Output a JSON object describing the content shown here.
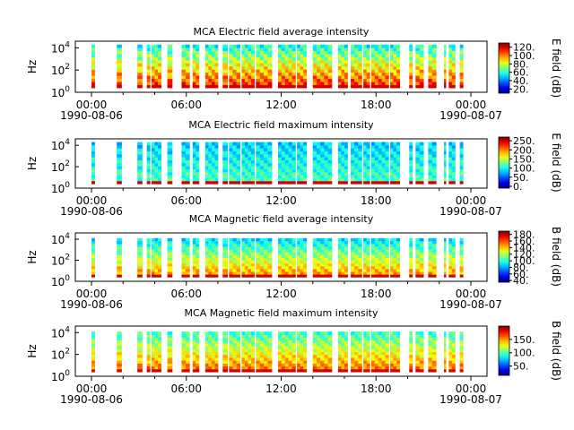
{
  "colors": {
    "axis": "#000000",
    "background": "#ffffff",
    "colormap": "jet"
  },
  "chart_data": [
    {
      "type": "heatmap",
      "title": "MCA  Electric field average intensity",
      "ylabel": "Hz",
      "y_scale": "log",
      "y_ticks": [
        {
          "exp": "0",
          "label": "10",
          "value": 1
        },
        {
          "exp": "2",
          "label": "10",
          "value": 100
        },
        {
          "exp": "4",
          "label": "10",
          "value": 10000
        }
      ],
      "x_ticks": [
        "00:00",
        "06:00",
        "12:00",
        "18:00",
        "00:00"
      ],
      "x_dates": [
        "1990-08-06",
        "1990-08-07"
      ],
      "colorbar_label": "E field (dB)",
      "colorbar_ticks": [
        "120.",
        "100.",
        "80.",
        "60.",
        "40.",
        "20."
      ],
      "colorbar_range": [
        10,
        130
      ],
      "time_range_hours": [
        0,
        24
      ]
    },
    {
      "type": "heatmap",
      "title": "MCA  Electric field maximum intensity",
      "ylabel": "Hz",
      "y_scale": "log",
      "y_ticks": [
        {
          "exp": "0",
          "label": "10",
          "value": 1
        },
        {
          "exp": "2",
          "label": "10",
          "value": 100
        },
        {
          "exp": "4",
          "label": "10",
          "value": 10000
        }
      ],
      "x_ticks": [
        "00:00",
        "06:00",
        "12:00",
        "18:00",
        "00:00"
      ],
      "x_dates": [
        "1990-08-06",
        "1990-08-07"
      ],
      "colorbar_label": "E field (dB)",
      "colorbar_ticks": [
        "250.",
        "200.",
        "150.",
        "100.",
        "50.",
        "0."
      ],
      "colorbar_range": [
        -10,
        270
      ],
      "time_range_hours": [
        0,
        24
      ]
    },
    {
      "type": "heatmap",
      "title": "MCA  Magnetic field average intensity",
      "ylabel": "Hz",
      "y_scale": "log",
      "y_ticks": [
        {
          "exp": "0",
          "label": "10",
          "value": 1
        },
        {
          "exp": "2",
          "label": "10",
          "value": 100
        },
        {
          "exp": "4",
          "label": "10",
          "value": 10000
        }
      ],
      "x_ticks": [
        "00:00",
        "06:00",
        "12:00",
        "18:00",
        "00:00"
      ],
      "x_dates": [
        "1990-08-06",
        "1990-08-07"
      ],
      "colorbar_label": "B field (dB)",
      "colorbar_ticks": [
        "180.",
        "160.",
        "140.",
        "120.",
        "100.",
        "80.",
        "60.",
        "40."
      ],
      "colorbar_range": [
        35,
        190
      ],
      "time_range_hours": [
        0,
        24
      ]
    },
    {
      "type": "heatmap",
      "title": "MCA  Magnetic field maximum intensity",
      "ylabel": "Hz",
      "y_scale": "log",
      "y_ticks": [
        {
          "exp": "0",
          "label": "10",
          "value": 1
        },
        {
          "exp": "2",
          "label": "10",
          "value": 100
        },
        {
          "exp": "4",
          "label": "10",
          "value": 10000
        }
      ],
      "x_ticks": [
        "00:00",
        "06:00",
        "12:00",
        "18:00",
        "00:00"
      ],
      "x_dates": [
        "1990-08-06",
        "1990-08-07"
      ],
      "colorbar_label": "B field (dB)",
      "colorbar_ticks": [
        "150.",
        "100.",
        "50."
      ],
      "colorbar_range": [
        15,
        200
      ],
      "time_range_hours": [
        0,
        24
      ]
    }
  ],
  "data_segments_hours": [
    [
      0.0,
      0.2
    ],
    [
      1.6,
      1.9
    ],
    [
      2.9,
      3.2
    ],
    [
      3.5,
      3.7
    ],
    [
      3.8,
      4.4
    ],
    [
      4.8,
      5.1
    ],
    [
      5.7,
      6.2
    ],
    [
      6.4,
      6.8
    ],
    [
      7.2,
      8.0
    ],
    [
      8.3,
      8.6
    ],
    [
      8.7,
      9.4
    ],
    [
      9.5,
      10.3
    ],
    [
      10.4,
      11.4
    ],
    [
      11.8,
      12.9
    ],
    [
      13.0,
      13.6
    ],
    [
      14.0,
      15.2
    ],
    [
      15.6,
      16.2
    ],
    [
      16.4,
      17.1
    ],
    [
      17.2,
      17.6
    ],
    [
      17.7,
      18.8
    ],
    [
      18.9,
      19.5
    ],
    [
      20.1,
      20.3
    ],
    [
      20.5,
      21.0
    ],
    [
      21.3,
      21.8
    ],
    [
      22.3,
      22.4
    ],
    [
      22.6,
      23.0
    ],
    [
      23.3,
      23.5
    ]
  ]
}
